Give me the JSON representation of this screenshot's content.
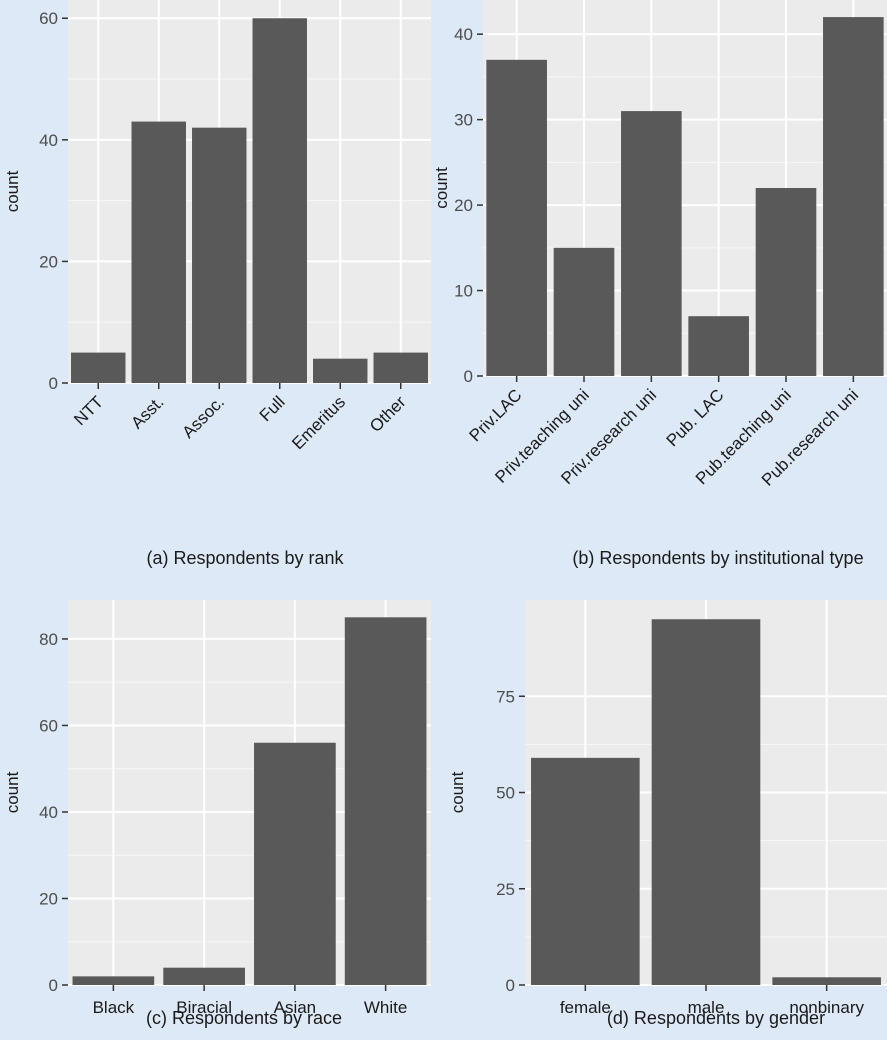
{
  "chart_data": [
    {
      "type": "bar",
      "caption": "(a) Respondents by rank",
      "ylabel": "count",
      "categories": [
        "NTT",
        "Asst.",
        "Assoc.",
        "Full",
        "Emeritus",
        "Other"
      ],
      "values": [
        5,
        43,
        42,
        60,
        4,
        5
      ],
      "ylim": [
        0,
        63
      ],
      "yticks": [
        0,
        20,
        40,
        60
      ],
      "rotate_labels": true,
      "grid": true
    },
    {
      "type": "bar",
      "caption": "(b) Respondents by institutional type",
      "ylabel": "count",
      "categories": [
        "Priv.LAC",
        "Priv.teaching uni",
        "Priv.research uni",
        "Pub. LAC",
        "Pub.teaching uni",
        "Pub.research uni"
      ],
      "values": [
        37,
        15,
        31,
        7,
        22,
        42
      ],
      "ylim": [
        0,
        44
      ],
      "yticks": [
        0,
        10,
        20,
        30,
        40
      ],
      "rotate_labels": true,
      "grid": true
    },
    {
      "type": "bar",
      "caption": "(c) Respondents by race",
      "ylabel": "count",
      "categories": [
        "Black",
        "Biracial",
        "Asian",
        "White"
      ],
      "values": [
        2,
        4,
        56,
        85
      ],
      "ylim": [
        0,
        89
      ],
      "yticks": [
        0,
        20,
        40,
        60,
        80
      ],
      "rotate_labels": false,
      "grid": true
    },
    {
      "type": "bar",
      "caption": "(d) Respondents by gender",
      "ylabel": "count",
      "categories": [
        "female",
        "male",
        "nonbinary"
      ],
      "values": [
        59,
        95,
        2
      ],
      "ylim": [
        0,
        100
      ],
      "yticks": [
        0,
        25,
        50,
        75
      ],
      "rotate_labels": false,
      "grid": true
    }
  ]
}
